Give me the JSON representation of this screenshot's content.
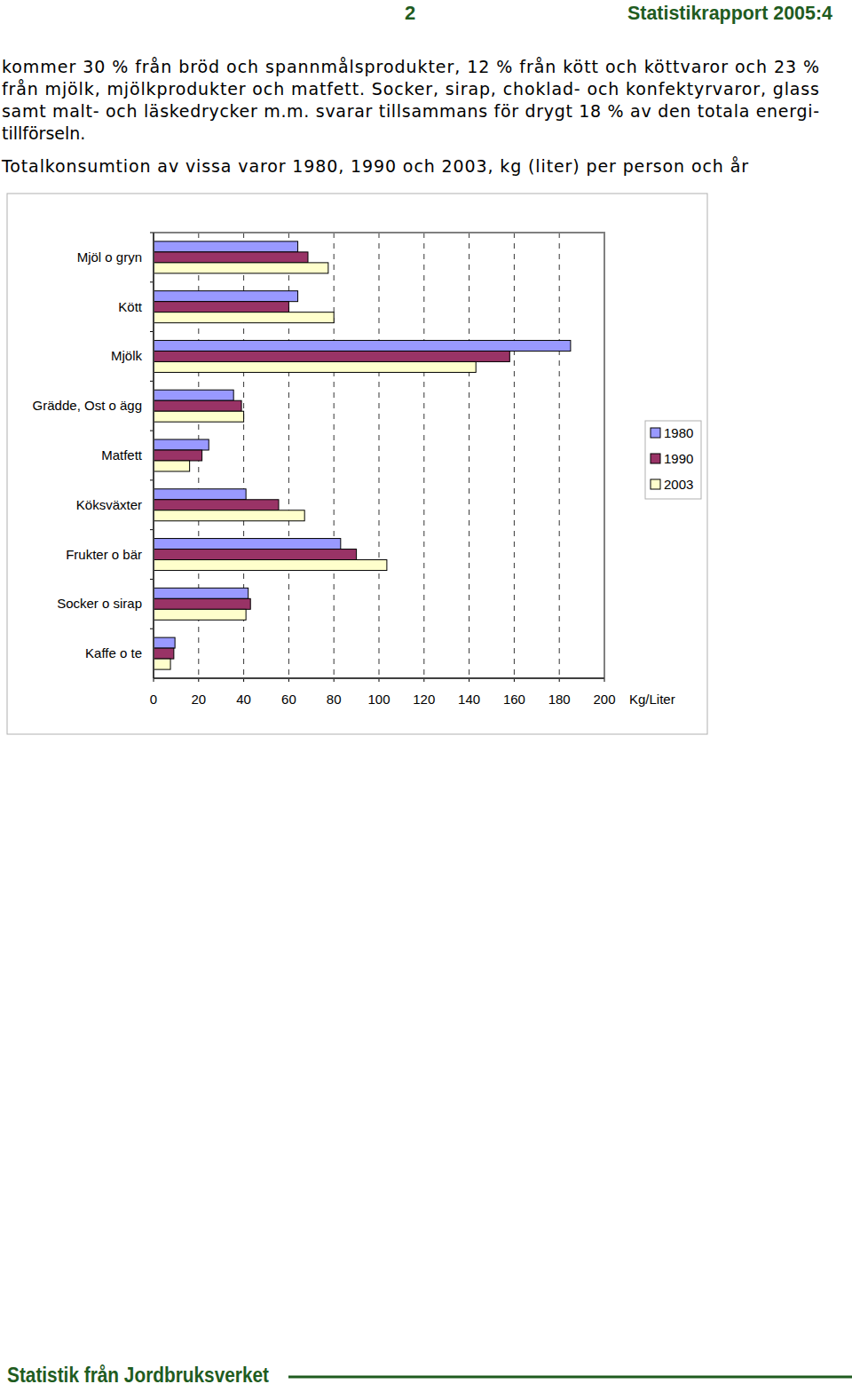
{
  "header": {
    "page": "2",
    "report": "Statistikrapport 2005:4"
  },
  "paragraph": [
    "kommer 30 % från bröd och spannmålsprodukter, 12 % från kött och köttvaror och 23 %",
    "från mjölk, mjölkprodukter och matfett. Socker, sirap, choklad- och konfektyrvaror, glass",
    "samt malt- och läskedrycker m.m. svarar tillsammans för drygt 18 % av den totala energi-",
    "tillförseln."
  ],
  "chart_data": {
    "type": "bar",
    "orientation": "horizontal",
    "title": "Totalkonsumtion av vissa varor 1980, 1990 och 2003, kg (liter) per person och år",
    "x_label": "Kg/Liter",
    "categories": [
      "Mjöl o gryn",
      "Kött",
      "Mjölk",
      "Grädde, Ost o ägg",
      "Matfett",
      "Köksväxter",
      "Frukter o bär",
      "Socker o sirap",
      "Kaffe o te"
    ],
    "series": [
      {
        "name": "1980",
        "color": "#9999ff",
        "values": [
          64,
          64,
          185,
          35.5,
          24.5,
          41,
          83,
          42,
          9.5
        ]
      },
      {
        "name": "1990",
        "color": "#993366",
        "values": [
          68.5,
          60,
          158,
          39,
          21.5,
          55.5,
          90,
          43,
          9
        ]
      },
      {
        "name": "2003",
        "color": "#ffffcc",
        "values": [
          77.5,
          80,
          143,
          40,
          16,
          67,
          103.5,
          41,
          7.5
        ]
      }
    ],
    "xlim": [
      0,
      200
    ],
    "xticks": [
      0,
      20,
      40,
      60,
      80,
      100,
      120,
      140,
      160,
      180,
      200
    ],
    "grid": true,
    "legend": "right"
  },
  "footer": "Statistik från Jordbruksverket"
}
